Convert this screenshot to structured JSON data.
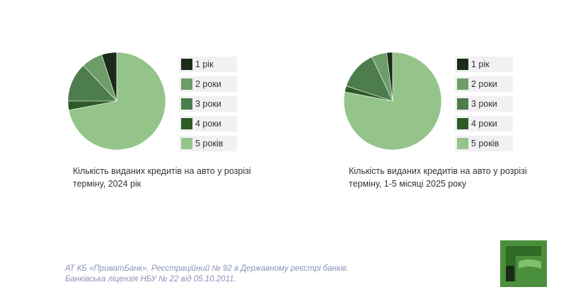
{
  "chart_data": [
    {
      "type": "pie",
      "categories": [
        "1 рік",
        "2 роки",
        "3 роки",
        "4 роки",
        "5 років"
      ],
      "values": [
        5,
        7,
        13,
        3,
        72
      ],
      "colors": [
        "#1c2c18",
        "#6d9d68",
        "#4d7d4e",
        "#2e5a26",
        "#94c48a"
      ],
      "caption": "Кількість виданих кредитів на авто у розрізі терміну, 2024 рік"
    },
    {
      "type": "pie",
      "categories": [
        "1 рік",
        "2 роки",
        "3 роки",
        "4 роки",
        "5 років"
      ],
      "values": [
        2,
        5,
        13,
        2,
        78
      ],
      "colors": [
        "#1c2c18",
        "#6d9d68",
        "#4d7d4e",
        "#2e5a26",
        "#94c48a"
      ],
      "caption": "Кількість виданих кредитів на авто у розрізі терміну, 1-5 місяці 2025 року"
    }
  ],
  "footer": {
    "line1": "АТ КБ «ПриватБанк». Реєстраційний № 92 в Державному реєстрі банків.",
    "line2": "Банківська ліцензія НБУ № 22 від 05.10.2011."
  },
  "logo": {
    "colors": [
      "#4a8f3c",
      "#1a2a16"
    ]
  }
}
